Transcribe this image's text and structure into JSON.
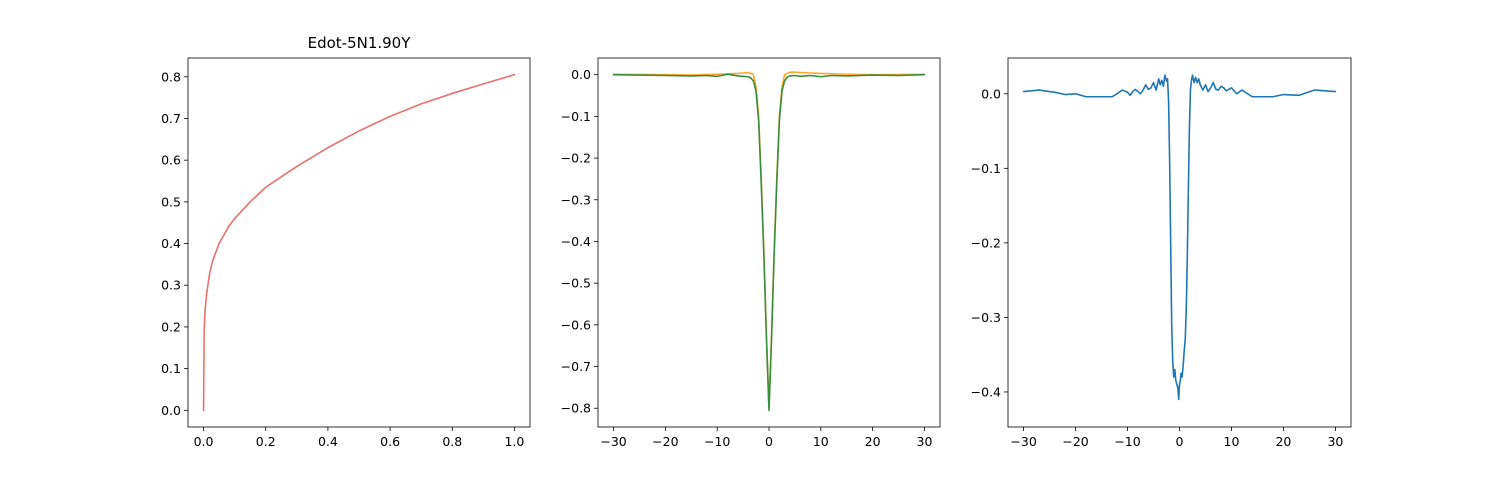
{
  "chart_data": [
    {
      "type": "line",
      "title": "Edot-5N1.90Y",
      "xlabel": "",
      "ylabel": "",
      "xlim": [
        -0.05,
        1.05
      ],
      "ylim": [
        -0.04,
        0.845
      ],
      "xticks": [
        0.0,
        0.2,
        0.4,
        0.6,
        0.8,
        1.0
      ],
      "xtick_labels": [
        "0.0",
        "0.2",
        "0.4",
        "0.6",
        "0.8",
        "1.0"
      ],
      "yticks": [
        0.0,
        0.1,
        0.2,
        0.3,
        0.4,
        0.5,
        0.6,
        0.7,
        0.8
      ],
      "ytick_labels": [
        "0.0",
        "0.1",
        "0.2",
        "0.3",
        "0.4",
        "0.5",
        "0.6",
        "0.7",
        "0.8"
      ],
      "grid": false,
      "series": [
        {
          "color": "#e8716e",
          "x": [
            0.0,
            0.002,
            0.005,
            0.01,
            0.02,
            0.03,
            0.05,
            0.08,
            0.1,
            0.15,
            0.2,
            0.25,
            0.3,
            0.4,
            0.5,
            0.6,
            0.7,
            0.8,
            0.9,
            1.0
          ],
          "y": [
            0.0,
            0.19,
            0.24,
            0.28,
            0.33,
            0.36,
            0.4,
            0.44,
            0.46,
            0.5,
            0.535,
            0.56,
            0.585,
            0.63,
            0.67,
            0.705,
            0.735,
            0.76,
            0.783,
            0.805
          ]
        }
      ]
    },
    {
      "type": "line",
      "title": "",
      "xlabel": "",
      "ylabel": "",
      "xlim": [
        -33,
        33
      ],
      "ylim": [
        -0.845,
        0.04
      ],
      "xticks": [
        -30,
        -20,
        -10,
        0,
        10,
        20,
        30
      ],
      "xtick_labels": [
        "−30",
        "−20",
        "−10",
        "0",
        "10",
        "20",
        "30"
      ],
      "yticks": [
        0.0,
        -0.1,
        -0.2,
        -0.3,
        -0.4,
        -0.5,
        -0.6,
        -0.7,
        -0.8
      ],
      "ytick_labels": [
        "0.0",
        "−0.1",
        "−0.2",
        "−0.3",
        "−0.4",
        "−0.5",
        "−0.6",
        "−0.7",
        "−0.8"
      ],
      "grid": false,
      "series": [
        {
          "color": "#ffa726",
          "x": [
            -30,
            -20,
            -15,
            -10,
            -8,
            -6,
            -5,
            -4,
            -3.5,
            -3,
            -2.5,
            -2,
            -1.5,
            -1,
            -0.5,
            0,
            0.5,
            1,
            1.5,
            2,
            2.5,
            3,
            3.5,
            4,
            5,
            6,
            8,
            10,
            15,
            20,
            30
          ],
          "y": [
            0.001,
            0.0,
            -0.001,
            0.001,
            0.002,
            0.003,
            0.004,
            0.005,
            0.003,
            0.0,
            -0.03,
            -0.1,
            -0.25,
            -0.42,
            -0.62,
            -0.8,
            -0.62,
            -0.42,
            -0.25,
            -0.1,
            -0.03,
            0.0,
            0.003,
            0.006,
            0.006,
            0.005,
            0.004,
            0.003,
            0.001,
            0.0,
            0.001
          ]
        },
        {
          "color": "#388e3c",
          "x": [
            -30,
            -25,
            -20,
            -15,
            -12,
            -10,
            -8,
            -6,
            -5,
            -4,
            -3.5,
            -3,
            -2.5,
            -2,
            -1.5,
            -1,
            -0.5,
            0,
            0.5,
            1,
            1.5,
            2,
            2.5,
            3,
            3.5,
            4,
            5,
            6,
            8,
            10,
            12,
            15,
            20,
            25,
            30
          ],
          "y": [
            0.0,
            -0.001,
            -0.002,
            -0.003,
            -0.002,
            -0.004,
            0.001,
            -0.003,
            -0.004,
            -0.005,
            -0.008,
            -0.015,
            -0.04,
            -0.11,
            -0.26,
            -0.43,
            -0.63,
            -0.805,
            -0.63,
            -0.43,
            -0.26,
            -0.11,
            -0.04,
            -0.015,
            -0.006,
            -0.003,
            -0.002,
            -0.004,
            -0.002,
            -0.005,
            -0.002,
            -0.003,
            -0.001,
            -0.002,
            0.0
          ]
        }
      ]
    },
    {
      "type": "line",
      "title": "",
      "xlabel": "",
      "ylabel": "",
      "xlim": [
        -33,
        33
      ],
      "ylim": [
        -0.447,
        0.048
      ],
      "xticks": [
        -30,
        -20,
        -10,
        0,
        10,
        20,
        30
      ],
      "xtick_labels": [
        "−30",
        "−20",
        "−10",
        "0",
        "10",
        "20",
        "30"
      ],
      "yticks": [
        0.0,
        -0.1,
        -0.2,
        -0.3,
        -0.4
      ],
      "ytick_labels": [
        "0.0",
        "−0.1",
        "−0.2",
        "−0.3",
        "−0.4"
      ],
      "grid": false,
      "series": [
        {
          "color": "#1f77b4",
          "x": [
            -30,
            -27,
            -24,
            -22,
            -20,
            -18,
            -16,
            -14,
            -13,
            -12,
            -11,
            -10,
            -9.5,
            -9,
            -8.5,
            -8,
            -7.5,
            -7,
            -6.5,
            -6,
            -5.5,
            -5,
            -4.5,
            -4,
            -3.7,
            -3.4,
            -3.1,
            -2.8,
            -2.5,
            -2.3,
            -2.1,
            -1.9,
            -1.7,
            -1.5,
            -1.3,
            -1.1,
            -0.9,
            -0.7,
            -0.5,
            -0.3,
            -0.15,
            0,
            0.15,
            0.3,
            0.5,
            0.7,
            0.9,
            1.1,
            1.3,
            1.5,
            1.7,
            1.9,
            2.1,
            2.3,
            2.5,
            2.8,
            3.1,
            3.4,
            3.7,
            4,
            4.5,
            5,
            5.5,
            6,
            6.5,
            7,
            7.5,
            8,
            8.5,
            9,
            10,
            11,
            12,
            14,
            16,
            18,
            20,
            23,
            26,
            30
          ],
          "y": [
            0.003,
            0.005,
            0.002,
            -0.001,
            0.0,
            -0.004,
            -0.004,
            -0.004,
            -0.004,
            0.0,
            0.005,
            0.002,
            -0.002,
            0.003,
            0.006,
            0.003,
            0.0,
            0.005,
            0.012,
            0.006,
            0.008,
            0.015,
            0.005,
            0.02,
            0.012,
            0.018,
            0.01,
            0.025,
            0.017,
            0.02,
            -0.01,
            -0.09,
            -0.2,
            -0.31,
            -0.36,
            -0.38,
            -0.37,
            -0.385,
            -0.39,
            -0.395,
            -0.41,
            -0.39,
            -0.385,
            -0.375,
            -0.38,
            -0.365,
            -0.345,
            -0.33,
            -0.29,
            -0.22,
            -0.13,
            -0.05,
            0.005,
            0.018,
            0.025,
            0.015,
            0.022,
            0.015,
            0.02,
            0.012,
            0.005,
            0.012,
            0.003,
            0.008,
            0.015,
            0.006,
            0.005,
            0.01,
            0.008,
            0.004,
            0.008,
            0.0,
            0.005,
            -0.004,
            -0.004,
            -0.004,
            -0.001,
            -0.002,
            0.005,
            0.003
          ]
        }
      ]
    }
  ]
}
